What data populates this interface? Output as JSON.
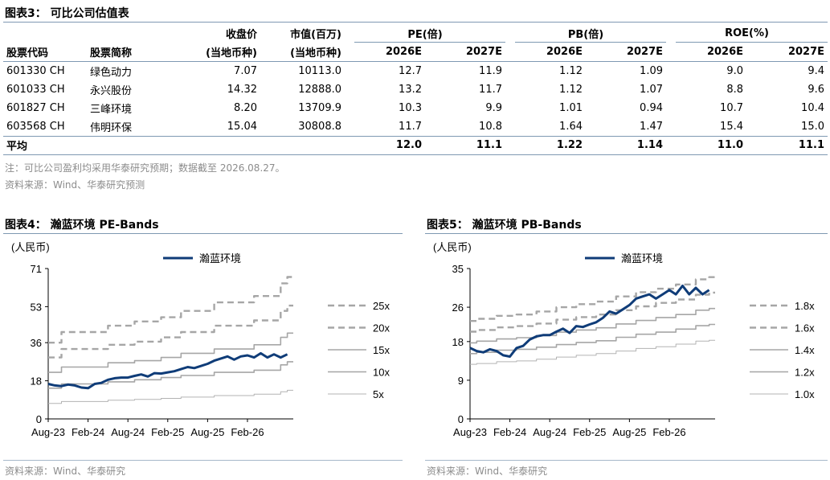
{
  "table_section": {
    "title": "图表3：  可比公司估值表",
    "head1": {
      "close": "收盘价",
      "mcap": "市值(百万)",
      "pe": "PE(倍)",
      "pb": "PB(倍)",
      "roe": "ROE(%)"
    },
    "head2": {
      "code": "股票代码",
      "name": "股票简称",
      "close_unit": "(当地币种)",
      "mcap_unit": "(当地币种)",
      "years": [
        "2026E",
        "2027E",
        "2026E",
        "2027E",
        "2026E",
        "2027E"
      ]
    },
    "rows": [
      {
        "code": "601330 CH",
        "name": "绿色动力",
        "close": "7.07",
        "mcap": "10113.0",
        "pe26": "12.7",
        "pe27": "11.9",
        "pb26": "1.12",
        "pb27": "1.09",
        "roe26": "9.0",
        "roe27": "9.4"
      },
      {
        "code": "601033 CH",
        "name": "永兴股份",
        "close": "14.32",
        "mcap": "12888.0",
        "pe26": "13.2",
        "pe27": "11.7",
        "pb26": "1.12",
        "pb27": "1.07",
        "roe26": "8.8",
        "roe27": "9.6"
      },
      {
        "code": "601827 CH",
        "name": "三峰环境",
        "close": "8.20",
        "mcap": "13709.9",
        "pe26": "10.3",
        "pe27": "9.9",
        "pb26": "1.01",
        "pb27": "0.94",
        "roe26": "10.7",
        "roe27": "10.4"
      },
      {
        "code": "603568 CH",
        "name": "伟明环保",
        "close": "15.04",
        "mcap": "30808.8",
        "pe26": "11.7",
        "pe27": "10.8",
        "pb26": "1.64",
        "pb27": "1.47",
        "roe26": "15.4",
        "roe27": "15.0"
      }
    ],
    "average": {
      "label": "平均",
      "pe26": "12.0",
      "pe27": "11.1",
      "pb26": "1.22",
      "pb27": "1.14",
      "roe26": "11.0",
      "roe27": "11.1"
    },
    "note": "注：可比公司盈利均采用华泰研究预期；数据截至 2026.08.27。",
    "source": "资料来源：Wind、华泰研究预测"
  },
  "chart4": {
    "title": "图表4：  瀚蓝环境 PE-Bands",
    "source": "资料来源：Wind、华泰研究"
  },
  "chart5": {
    "title": "图表5：  瀚蓝环境 PB-Bands",
    "source": "资料来源：Wind、华泰研究"
  },
  "chart_data": [
    {
      "type": "line",
      "title": "瀚蓝环境 PE-Bands",
      "ylabel": "(人民币)",
      "ylim": [
        0,
        71
      ],
      "yticks": [
        0,
        18,
        36,
        53,
        71
      ],
      "xlim": [
        "2023-08-01",
        "2026-08-27"
      ],
      "xticks": [
        "Aug-23",
        "Feb-24",
        "Aug-24",
        "Feb-25",
        "Aug-25",
        "Feb-26"
      ],
      "legend_position": "right",
      "price_color": "#0f3c78",
      "band_color": "#a6a6a6",
      "series": [
        {
          "name": "瀚蓝环境",
          "style": "solid-thick",
          "color": "#0f3c78",
          "x": [
            "2023-08",
            "2023-09",
            "2023-10",
            "2023-11",
            "2023-12",
            "2024-01",
            "2024-02",
            "2024-03",
            "2024-04",
            "2024-05",
            "2024-06",
            "2024-07",
            "2024-08",
            "2024-09",
            "2024-10",
            "2024-11",
            "2024-12",
            "2025-01",
            "2025-02",
            "2025-03",
            "2025-04",
            "2025-05",
            "2025-06",
            "2025-07",
            "2025-08",
            "2025-09",
            "2025-10",
            "2025-11",
            "2025-12",
            "2026-01",
            "2026-02",
            "2026-03",
            "2026-04",
            "2026-05",
            "2026-06",
            "2026-07",
            "2026-08"
          ],
          "values": [
            16.5,
            15.8,
            15.5,
            16.2,
            15.8,
            14.8,
            14.5,
            16.5,
            17.0,
            18.5,
            19.2,
            19.5,
            19.5,
            20.3,
            21.0,
            20.0,
            21.6,
            21.4,
            22.0,
            22.5,
            23.5,
            24.5,
            24.0,
            25.0,
            26.0,
            27.5,
            28.5,
            29.5,
            28.0,
            29.5,
            30.0,
            29.0,
            31.0,
            29.0,
            30.5,
            29.0,
            30.5
          ]
        },
        {
          "name": "25x",
          "style": "dashed-thick",
          "x": [
            "2023-08",
            "2023-09",
            "2023-10",
            "2024-03",
            "2024-05",
            "2024-09",
            "2025-01",
            "2025-04",
            "2025-09",
            "2025-12",
            "2026-03",
            "2026-07",
            "2026-08"
          ],
          "values": [
            36.0,
            36.0,
            41.0,
            41.0,
            44.0,
            46.0,
            48.0,
            51.0,
            55.0,
            55.0,
            58.0,
            64.0,
            67.0
          ]
        },
        {
          "name": "20x",
          "style": "dashed-thick",
          "x": [
            "2023-08",
            "2023-09",
            "2023-10",
            "2024-03",
            "2024-05",
            "2024-09",
            "2025-01",
            "2025-04",
            "2025-09",
            "2025-12",
            "2026-03",
            "2026-07",
            "2026-08"
          ],
          "values": [
            29.0,
            29.0,
            33.0,
            33.0,
            35.0,
            36.5,
            38.5,
            41.0,
            44.0,
            44.0,
            46.5,
            51.0,
            53.5
          ]
        },
        {
          "name": "15x",
          "style": "solid",
          "x": [
            "2023-08",
            "2023-09",
            "2023-10",
            "2024-03",
            "2024-05",
            "2024-09",
            "2025-01",
            "2025-04",
            "2025-09",
            "2025-12",
            "2026-03",
            "2026-07",
            "2026-08"
          ],
          "values": [
            22.0,
            22.0,
            24.5,
            24.5,
            26.5,
            27.5,
            29.0,
            31.0,
            33.0,
            33.0,
            35.0,
            38.5,
            40.5
          ]
        },
        {
          "name": "10x",
          "style": "solid",
          "x": [
            "2023-08",
            "2023-09",
            "2023-10",
            "2024-03",
            "2024-05",
            "2024-09",
            "2025-01",
            "2025-04",
            "2025-09",
            "2025-12",
            "2026-03",
            "2026-07",
            "2026-08"
          ],
          "values": [
            14.5,
            14.5,
            16.5,
            16.5,
            17.5,
            18.5,
            19.5,
            20.5,
            22.0,
            22.0,
            23.0,
            25.5,
            27.0
          ]
        },
        {
          "name": "5x",
          "style": "solid-thin",
          "x": [
            "2023-08",
            "2023-09",
            "2023-10",
            "2024-03",
            "2024-05",
            "2024-09",
            "2025-01",
            "2025-04",
            "2025-09",
            "2025-12",
            "2026-03",
            "2026-07",
            "2026-08"
          ],
          "values": [
            7.3,
            7.3,
            8.2,
            8.2,
            8.8,
            9.2,
            9.7,
            10.3,
            11.0,
            11.0,
            11.7,
            12.8,
            13.5
          ]
        }
      ]
    },
    {
      "type": "line",
      "title": "瀚蓝环境 PB-Bands",
      "ylabel": "(人民币)",
      "ylim": [
        0,
        35
      ],
      "yticks": [
        0,
        9,
        18,
        26,
        35
      ],
      "xlim": [
        "2023-08-01",
        "2026-08-27"
      ],
      "xticks": [
        "Aug-23",
        "Feb-24",
        "Aug-24",
        "Feb-25",
        "Aug-25",
        "Feb-26"
      ],
      "legend_position": "right",
      "price_color": "#0f3c78",
      "band_color": "#a6a6a6",
      "series": [
        {
          "name": "瀚蓝环境",
          "style": "solid-thick",
          "color": "#0f3c78",
          "x": [
            "2023-08",
            "2023-09",
            "2023-10",
            "2023-11",
            "2023-12",
            "2024-01",
            "2024-02",
            "2024-03",
            "2024-04",
            "2024-05",
            "2024-06",
            "2024-07",
            "2024-08",
            "2024-09",
            "2024-10",
            "2024-11",
            "2024-12",
            "2025-01",
            "2025-02",
            "2025-03",
            "2025-04",
            "2025-05",
            "2025-06",
            "2025-07",
            "2025-08",
            "2025-09",
            "2025-10",
            "2025-11",
            "2025-12",
            "2026-01",
            "2026-02",
            "2026-03",
            "2026-04",
            "2026-05",
            "2026-06",
            "2026-07",
            "2026-08"
          ],
          "values": [
            16.5,
            15.8,
            15.5,
            16.2,
            15.8,
            14.8,
            14.5,
            16.5,
            17.0,
            18.5,
            19.2,
            19.5,
            19.5,
            20.3,
            21.0,
            20.0,
            21.6,
            21.4,
            22.0,
            22.5,
            23.5,
            25.0,
            24.5,
            25.5,
            26.5,
            28.0,
            28.5,
            29.0,
            28.0,
            29.0,
            30.0,
            29.0,
            31.0,
            29.0,
            30.5,
            29.0,
            30.0
          ]
        },
        {
          "name": "1.8x",
          "style": "dashed-thick",
          "x": [
            "2023-08",
            "2023-09",
            "2023-12",
            "2024-03",
            "2024-06",
            "2024-09",
            "2024-12",
            "2025-03",
            "2025-06",
            "2025-09",
            "2025-12",
            "2026-03",
            "2026-06",
            "2026-08"
          ],
          "values": [
            22.8,
            23.3,
            24.0,
            24.3,
            25.0,
            26.0,
            26.7,
            27.3,
            28.5,
            29.5,
            30.3,
            31.3,
            32.5,
            33.0
          ]
        },
        {
          "name": "1.6x",
          "style": "dashed-thick",
          "x": [
            "2023-08",
            "2023-09",
            "2023-12",
            "2024-03",
            "2024-06",
            "2024-09",
            "2024-12",
            "2025-03",
            "2025-06",
            "2025-09",
            "2025-12",
            "2026-03",
            "2026-06",
            "2026-08"
          ],
          "values": [
            20.3,
            20.7,
            21.3,
            21.6,
            22.2,
            23.1,
            23.7,
            24.3,
            25.3,
            26.2,
            27.0,
            27.8,
            28.9,
            29.4
          ]
        },
        {
          "name": "1.4x",
          "style": "solid",
          "x": [
            "2023-08",
            "2023-09",
            "2023-12",
            "2024-03",
            "2024-06",
            "2024-09",
            "2024-12",
            "2025-03",
            "2025-06",
            "2025-09",
            "2025-12",
            "2026-03",
            "2026-06",
            "2026-08"
          ],
          "values": [
            17.7,
            18.1,
            18.6,
            18.9,
            19.4,
            20.2,
            20.7,
            21.2,
            22.1,
            22.9,
            23.6,
            24.3,
            25.3,
            25.7
          ]
        },
        {
          "name": "1.2x",
          "style": "solid",
          "x": [
            "2023-08",
            "2023-09",
            "2023-12",
            "2024-03",
            "2024-06",
            "2024-09",
            "2024-12",
            "2025-03",
            "2025-06",
            "2025-09",
            "2025-12",
            "2026-03",
            "2026-06",
            "2026-08"
          ],
          "values": [
            15.2,
            15.5,
            16.0,
            16.2,
            16.7,
            17.3,
            17.8,
            18.2,
            19.0,
            19.7,
            20.2,
            20.9,
            21.7,
            22.0
          ]
        },
        {
          "name": "1.0x",
          "style": "solid-thin",
          "x": [
            "2023-08",
            "2023-09",
            "2023-12",
            "2024-03",
            "2024-06",
            "2024-09",
            "2024-12",
            "2025-03",
            "2025-06",
            "2025-09",
            "2025-12",
            "2026-03",
            "2026-06",
            "2026-08"
          ],
          "values": [
            12.7,
            12.9,
            13.3,
            13.5,
            13.9,
            14.4,
            14.8,
            15.2,
            15.8,
            16.4,
            16.8,
            17.4,
            18.1,
            18.3
          ]
        }
      ]
    }
  ]
}
